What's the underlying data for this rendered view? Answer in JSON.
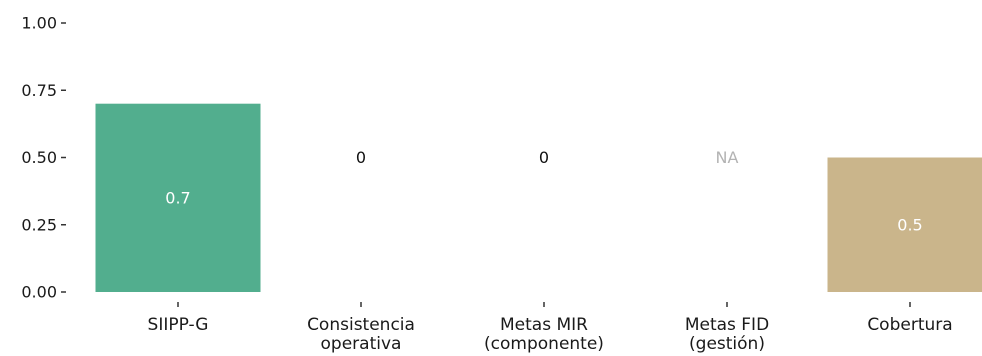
{
  "chart_data": {
    "type": "bar",
    "title": "",
    "xlabel": "",
    "ylabel": "",
    "ylim": [
      0,
      1
    ],
    "yticks": [
      {
        "value": 0,
        "label": "0.00"
      },
      {
        "value": 0.25,
        "label": "0.25"
      },
      {
        "value": 0.5,
        "label": "0.50"
      },
      {
        "value": 0.75,
        "label": "0.75"
      },
      {
        "value": 1,
        "label": "1.00"
      }
    ],
    "grid": false,
    "categories": [
      {
        "lines": [
          "SIIPP-G"
        ]
      },
      {
        "lines": [
          "Consistencia",
          "operativa"
        ]
      },
      {
        "lines": [
          "Metas MIR",
          "(componente)"
        ]
      },
      {
        "lines": [
          "Metas FID",
          "(gestión)"
        ]
      },
      {
        "lines": [
          "Cobertura"
        ]
      }
    ],
    "values": [
      0.7,
      0,
      0,
      null,
      0.5
    ],
    "data_labels": [
      "0.7",
      "0",
      "0",
      "NA",
      "0.5"
    ],
    "bar_colors": [
      "#52ae8e",
      "#52ae8e",
      "#52ae8e",
      "#52ae8e",
      "#cab58b"
    ],
    "label_colors": {
      "inside": "#ffffff",
      "zero": "#111111",
      "na": "#b3b3b3"
    }
  }
}
